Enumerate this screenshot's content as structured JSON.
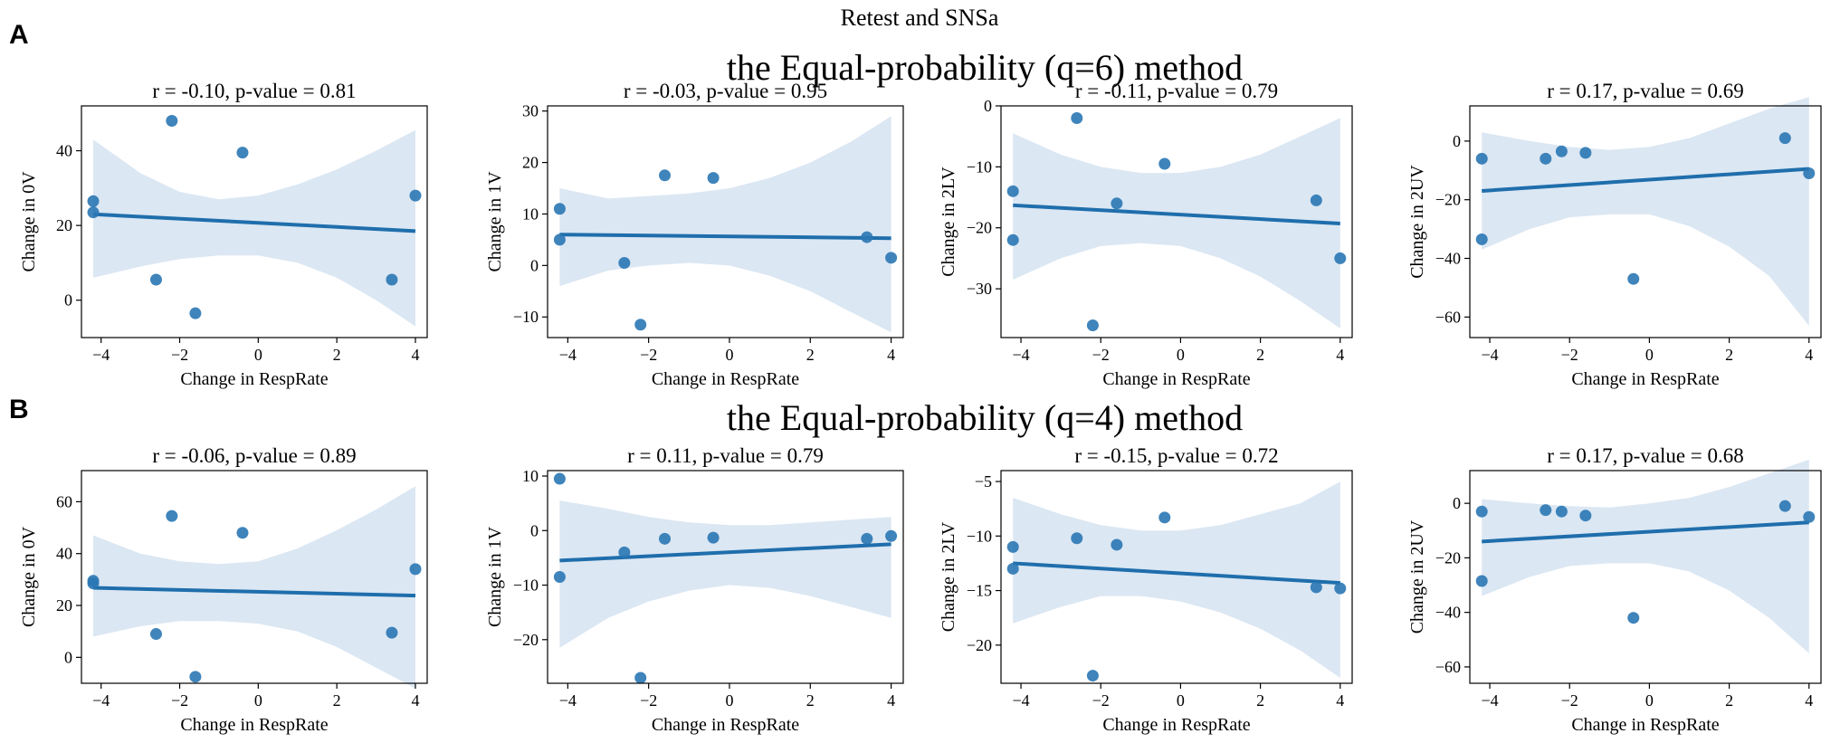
{
  "figure": {
    "suptitle": "Retest and SNSa",
    "colors": {
      "point": "#2a77b4",
      "line": "#1f6eac",
      "band": "#dbe7f3"
    }
  },
  "rows": [
    {
      "letter": "A",
      "title": "the Equal-probability (q=6) method",
      "charts": [
        {
          "type": "scatter",
          "title": "r = -0.10, p-value = 0.81",
          "xlabel": "Change in RespRate",
          "ylabel": "Change in 0V",
          "xlim": [
            -4.5,
            4.3
          ],
          "ylim": [
            -10,
            52
          ],
          "xticks": [
            -4,
            -2,
            0,
            2,
            4
          ],
          "yticks": [
            0,
            20,
            40
          ],
          "points": [
            [
              -4.2,
              26.5
            ],
            [
              -4.2,
              23.5
            ],
            [
              -2.6,
              5.5
            ],
            [
              -2.2,
              48
            ],
            [
              -1.6,
              -3.5
            ],
            [
              -0.4,
              39.5
            ],
            [
              3.4,
              5.5
            ],
            [
              4.0,
              28
            ]
          ],
          "fit": {
            "x": [
              -4.2,
              4.0
            ],
            "y": [
              23,
              18.5
            ]
          },
          "band": {
            "x": [
              -4.2,
              -3,
              -2,
              -1,
              0,
              1,
              2,
              3,
              4.0
            ],
            "upper": [
              43,
              34,
              29,
              27,
              28,
              31,
              35,
              40,
              45.5
            ],
            "lower": [
              6,
              9,
              11,
              12,
              12,
              10,
              6,
              0,
              -7
            ]
          }
        },
        {
          "type": "scatter",
          "title": "r = -0.03, p-value = 0.95",
          "xlabel": "Change in RespRate",
          "ylabel": "Change in 1V",
          "xlim": [
            -4.5,
            4.3
          ],
          "ylim": [
            -14,
            31
          ],
          "xticks": [
            -4,
            -2,
            0,
            2,
            4
          ],
          "yticks": [
            -10,
            0,
            10,
            20,
            30
          ],
          "points": [
            [
              -4.2,
              11
            ],
            [
              -4.2,
              5
            ],
            [
              -2.6,
              0.5
            ],
            [
              -2.2,
              -11.5
            ],
            [
              -1.6,
              17.5
            ],
            [
              -0.4,
              17
            ],
            [
              3.4,
              5.5
            ],
            [
              4.0,
              1.5
            ]
          ],
          "fit": {
            "x": [
              -4.2,
              4.0
            ],
            "y": [
              6,
              5.3
            ]
          },
          "band": {
            "x": [
              -4.2,
              -3,
              -2,
              -1,
              0,
              1,
              2,
              3,
              4.0
            ],
            "upper": [
              15,
              13,
              13.5,
              14,
              15,
              17,
              20,
              24,
              29
            ],
            "lower": [
              -4,
              -1,
              0,
              0.5,
              0,
              -2,
              -5,
              -9,
              -13
            ]
          }
        },
        {
          "type": "scatter",
          "title": "r = -0.11, p-value = 0.79",
          "xlabel": "Change in RespRate",
          "ylabel": "Change in 2LV",
          "xlim": [
            -4.5,
            4.3
          ],
          "ylim": [
            -38,
            0
          ],
          "xticks": [
            -4,
            -2,
            0,
            2,
            4
          ],
          "yticks": [
            -30,
            -20,
            -10,
            0
          ],
          "points": [
            [
              -4.2,
              -14
            ],
            [
              -4.2,
              -22
            ],
            [
              -2.6,
              -2
            ],
            [
              -2.2,
              -36
            ],
            [
              -1.6,
              -16
            ],
            [
              -0.4,
              -9.5
            ],
            [
              3.4,
              -15.5
            ],
            [
              4.0,
              -25
            ]
          ],
          "fit": {
            "x": [
              -4.2,
              4.0
            ],
            "y": [
              -16.3,
              -19.3
            ]
          },
          "band": {
            "x": [
              -4.2,
              -3,
              -2,
              -1,
              0,
              1,
              2,
              3,
              4.0
            ],
            "upper": [
              -4.5,
              -8,
              -10,
              -11,
              -11,
              -10,
              -8,
              -5,
              -2
            ],
            "lower": [
              -28.5,
              -25,
              -23,
              -22.5,
              -23,
              -25,
              -28,
              -32,
              -36.5
            ]
          }
        },
        {
          "type": "scatter",
          "title": "r = 0.17, p-value = 0.69",
          "xlabel": "Change in RespRate",
          "ylabel": "Change in 2UV",
          "xlim": [
            -4.5,
            4.3
          ],
          "ylim": [
            -67,
            12
          ],
          "xticks": [
            -4,
            -2,
            0,
            2,
            4
          ],
          "yticks": [
            -60,
            -40,
            -20,
            0
          ],
          "points": [
            [
              -4.2,
              -6
            ],
            [
              -4.2,
              -33.5
            ],
            [
              -2.6,
              -6
            ],
            [
              -2.2,
              -3.5
            ],
            [
              -1.6,
              -4
            ],
            [
              -0.4,
              -47
            ],
            [
              3.4,
              1
            ],
            [
              4.0,
              -11
            ]
          ],
          "fit": {
            "x": [
              -4.2,
              4.0
            ],
            "y": [
              -17,
              -9.5
            ]
          },
          "band": {
            "x": [
              -4.2,
              -3,
              -2,
              -1,
              0,
              1,
              2,
              3,
              4.0
            ],
            "upper": [
              3,
              0,
              -2,
              -3,
              -2,
              1,
              6,
              11,
              15
            ],
            "lower": [
              -37,
              -30,
              -26,
              -25,
              -25,
              -29,
              -36,
              -46,
              -63
            ]
          }
        }
      ]
    },
    {
      "letter": "B",
      "title": "the Equal-probability (q=4) method",
      "charts": [
        {
          "type": "scatter",
          "title": "r = -0.06, p-value = 0.89",
          "xlabel": "Change in RespRate",
          "ylabel": "Change in 0V",
          "xlim": [
            -4.5,
            4.3
          ],
          "ylim": [
            -10,
            72
          ],
          "xticks": [
            -4,
            -2,
            0,
            2,
            4
          ],
          "yticks": [
            0,
            20,
            40,
            60
          ],
          "points": [
            [
              -4.2,
              29.5
            ],
            [
              -4.2,
              28.5
            ],
            [
              -2.6,
              9
            ],
            [
              -2.2,
              54.5
            ],
            [
              -1.6,
              -7.5
            ],
            [
              -0.4,
              48
            ],
            [
              3.4,
              9.5
            ],
            [
              4.0,
              34
            ]
          ],
          "fit": {
            "x": [
              -4.2,
              4.0
            ],
            "y": [
              26.8,
              23.8
            ]
          },
          "band": {
            "x": [
              -4.2,
              -3,
              -2,
              -1,
              0,
              1,
              2,
              3,
              4.0
            ],
            "upper": [
              47,
              40,
              37,
              36,
              37,
              42,
              49,
              57,
              66
            ],
            "lower": [
              8,
              12,
              14,
              14,
              13,
              10,
              4,
              -4,
              -12
            ]
          }
        },
        {
          "type": "scatter",
          "title": "r = 0.11, p-value = 0.79",
          "xlabel": "Change in RespRate",
          "ylabel": "Change in 1V",
          "xlim": [
            -4.5,
            4.3
          ],
          "ylim": [
            -28,
            11
          ],
          "xticks": [
            -4,
            -2,
            0,
            2,
            4
          ],
          "yticks": [
            -20,
            -10,
            0,
            10
          ],
          "points": [
            [
              -4.2,
              9.5
            ],
            [
              -4.2,
              -8.5
            ],
            [
              -2.6,
              -4
            ],
            [
              -2.2,
              -27
            ],
            [
              -1.6,
              -1.5
            ],
            [
              -0.4,
              -1.3
            ],
            [
              3.4,
              -1.5
            ],
            [
              4.0,
              -1
            ]
          ],
          "fit": {
            "x": [
              -4.2,
              4.0
            ],
            "y": [
              -5.5,
              -2.5
            ]
          },
          "band": {
            "x": [
              -4.2,
              -3,
              -2,
              -1,
              0,
              1,
              2,
              3,
              4.0
            ],
            "upper": [
              5.5,
              4,
              2.5,
              1.5,
              1,
              1,
              1.5,
              2,
              2.5
            ],
            "lower": [
              -21.5,
              -16,
              -13,
              -11,
              -10,
              -10.5,
              -12,
              -14,
              -16
            ]
          }
        },
        {
          "type": "scatter",
          "title": "r = -0.15, p-value = 0.72",
          "xlabel": "Change in RespRate",
          "ylabel": "Change in 2LV",
          "xlim": [
            -4.5,
            4.3
          ],
          "ylim": [
            -23.5,
            -4
          ],
          "xticks": [
            -4,
            -2,
            0,
            2,
            4
          ],
          "yticks": [
            -20,
            -15,
            -10,
            -5
          ],
          "points": [
            [
              -4.2,
              -11
            ],
            [
              -4.2,
              -13
            ],
            [
              -2.6,
              -10.2
            ],
            [
              -2.2,
              -22.8
            ],
            [
              -1.6,
              -10.8
            ],
            [
              -0.4,
              -8.3
            ],
            [
              3.4,
              -14.7
            ],
            [
              4.0,
              -14.8
            ]
          ],
          "fit": {
            "x": [
              -4.2,
              4.0
            ],
            "y": [
              -12.5,
              -14.3
            ]
          },
          "band": {
            "x": [
              -4.2,
              -3,
              -2,
              -1,
              0,
              1,
              2,
              3,
              4.0
            ],
            "upper": [
              -6.5,
              -8,
              -9,
              -9.5,
              -9.5,
              -9,
              -8,
              -7,
              -5
            ],
            "lower": [
              -18,
              -16.5,
              -15.5,
              -15.5,
              -16,
              -17,
              -18.5,
              -20.5,
              -23
            ]
          }
        },
        {
          "type": "scatter",
          "title": "r = 0.17, p-value = 0.68",
          "xlabel": "Change in RespRate",
          "ylabel": "Change in 2UV",
          "xlim": [
            -4.5,
            4.3
          ],
          "ylim": [
            -66,
            12
          ],
          "xticks": [
            -4,
            -2,
            0,
            2,
            4
          ],
          "yticks": [
            -60,
            -40,
            -20,
            0
          ],
          "points": [
            [
              -4.2,
              -3
            ],
            [
              -4.2,
              -28.5
            ],
            [
              -2.6,
              -2.5
            ],
            [
              -2.2,
              -3
            ],
            [
              -1.6,
              -4.5
            ],
            [
              -0.4,
              -42
            ],
            [
              3.4,
              -1
            ],
            [
              4.0,
              -5
            ]
          ],
          "fit": {
            "x": [
              -4.2,
              4.0
            ],
            "y": [
              -14,
              -7
            ]
          },
          "band": {
            "x": [
              -4.2,
              -3,
              -2,
              -1,
              0,
              1,
              2,
              3,
              4.0
            ],
            "upper": [
              1.5,
              0,
              -1,
              -1.5,
              0,
              2,
              6,
              11,
              16
            ],
            "lower": [
              -34,
              -27,
              -23,
              -22,
              -22,
              -25,
              -32,
              -42,
              -55
            ]
          }
        }
      ]
    }
  ]
}
